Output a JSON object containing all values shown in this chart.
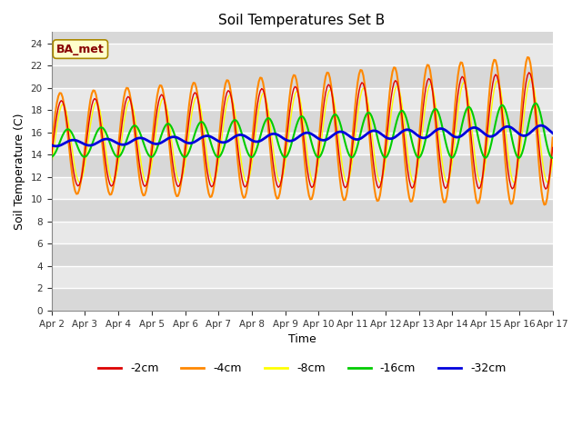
{
  "title": "Soil Temperatures Set B",
  "xlabel": "Time",
  "ylabel": "Soil Temperature (C)",
  "ylim": [
    0,
    25
  ],
  "yticks": [
    0,
    2,
    4,
    6,
    8,
    10,
    12,
    14,
    16,
    18,
    20,
    22,
    24
  ],
  "x_labels": [
    "Apr 2",
    "Apr 3",
    "Apr 4",
    "Apr 5",
    "Apr 6",
    "Apr 7",
    "Apr 8",
    "Apr 9",
    "Apr 10",
    "Apr 11",
    "Apr 12",
    "Apr 13",
    "Apr 14",
    "Apr 15",
    "Apr 16",
    "Apr 17"
  ],
  "series_colors": [
    "#dd0000",
    "#ff8800",
    "#ffff00",
    "#00cc00",
    "#0000dd"
  ],
  "series_labels": [
    "-2cm",
    "-4cm",
    "-8cm",
    "-16cm",
    "-32cm"
  ],
  "series_linewidths": [
    1.0,
    1.5,
    1.0,
    1.5,
    2.0
  ],
  "background_color": "#e0e0e0",
  "band_color_light": "#d8d8d8",
  "band_color_dark": "#e8e8e8",
  "annotation_text": "BA_met",
  "annotation_bg": "#ffffcc",
  "annotation_border": "#aa8800"
}
